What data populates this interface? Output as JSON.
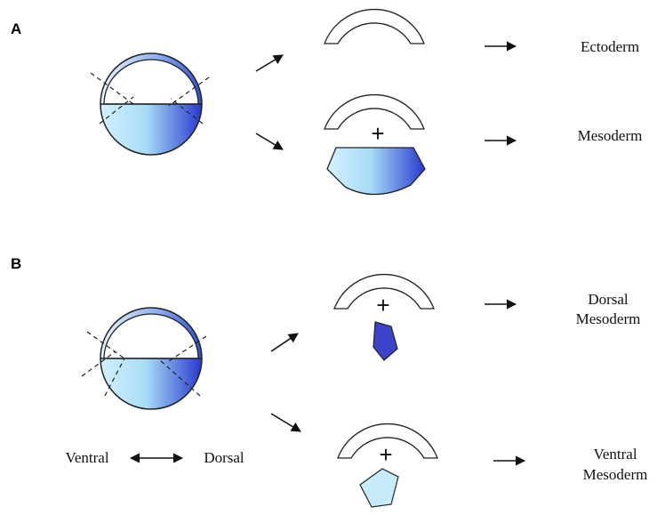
{
  "panels": [
    {
      "label": "A",
      "outcomes": [
        {
          "lines": [
            "Ectoderm"
          ]
        },
        {
          "plus": "+",
          "lines": [
            "Mesoderm"
          ]
        }
      ]
    },
    {
      "label": "B",
      "outcomes": [
        {
          "plus": "+",
          "lines": [
            "Dorsal",
            "Mesoderm"
          ]
        },
        {
          "plus": "+",
          "lines": [
            "Ventral",
            "Mesoderm"
          ]
        }
      ],
      "axis": {
        "left": "Ventral",
        "right": "Dorsal"
      }
    }
  ]
}
